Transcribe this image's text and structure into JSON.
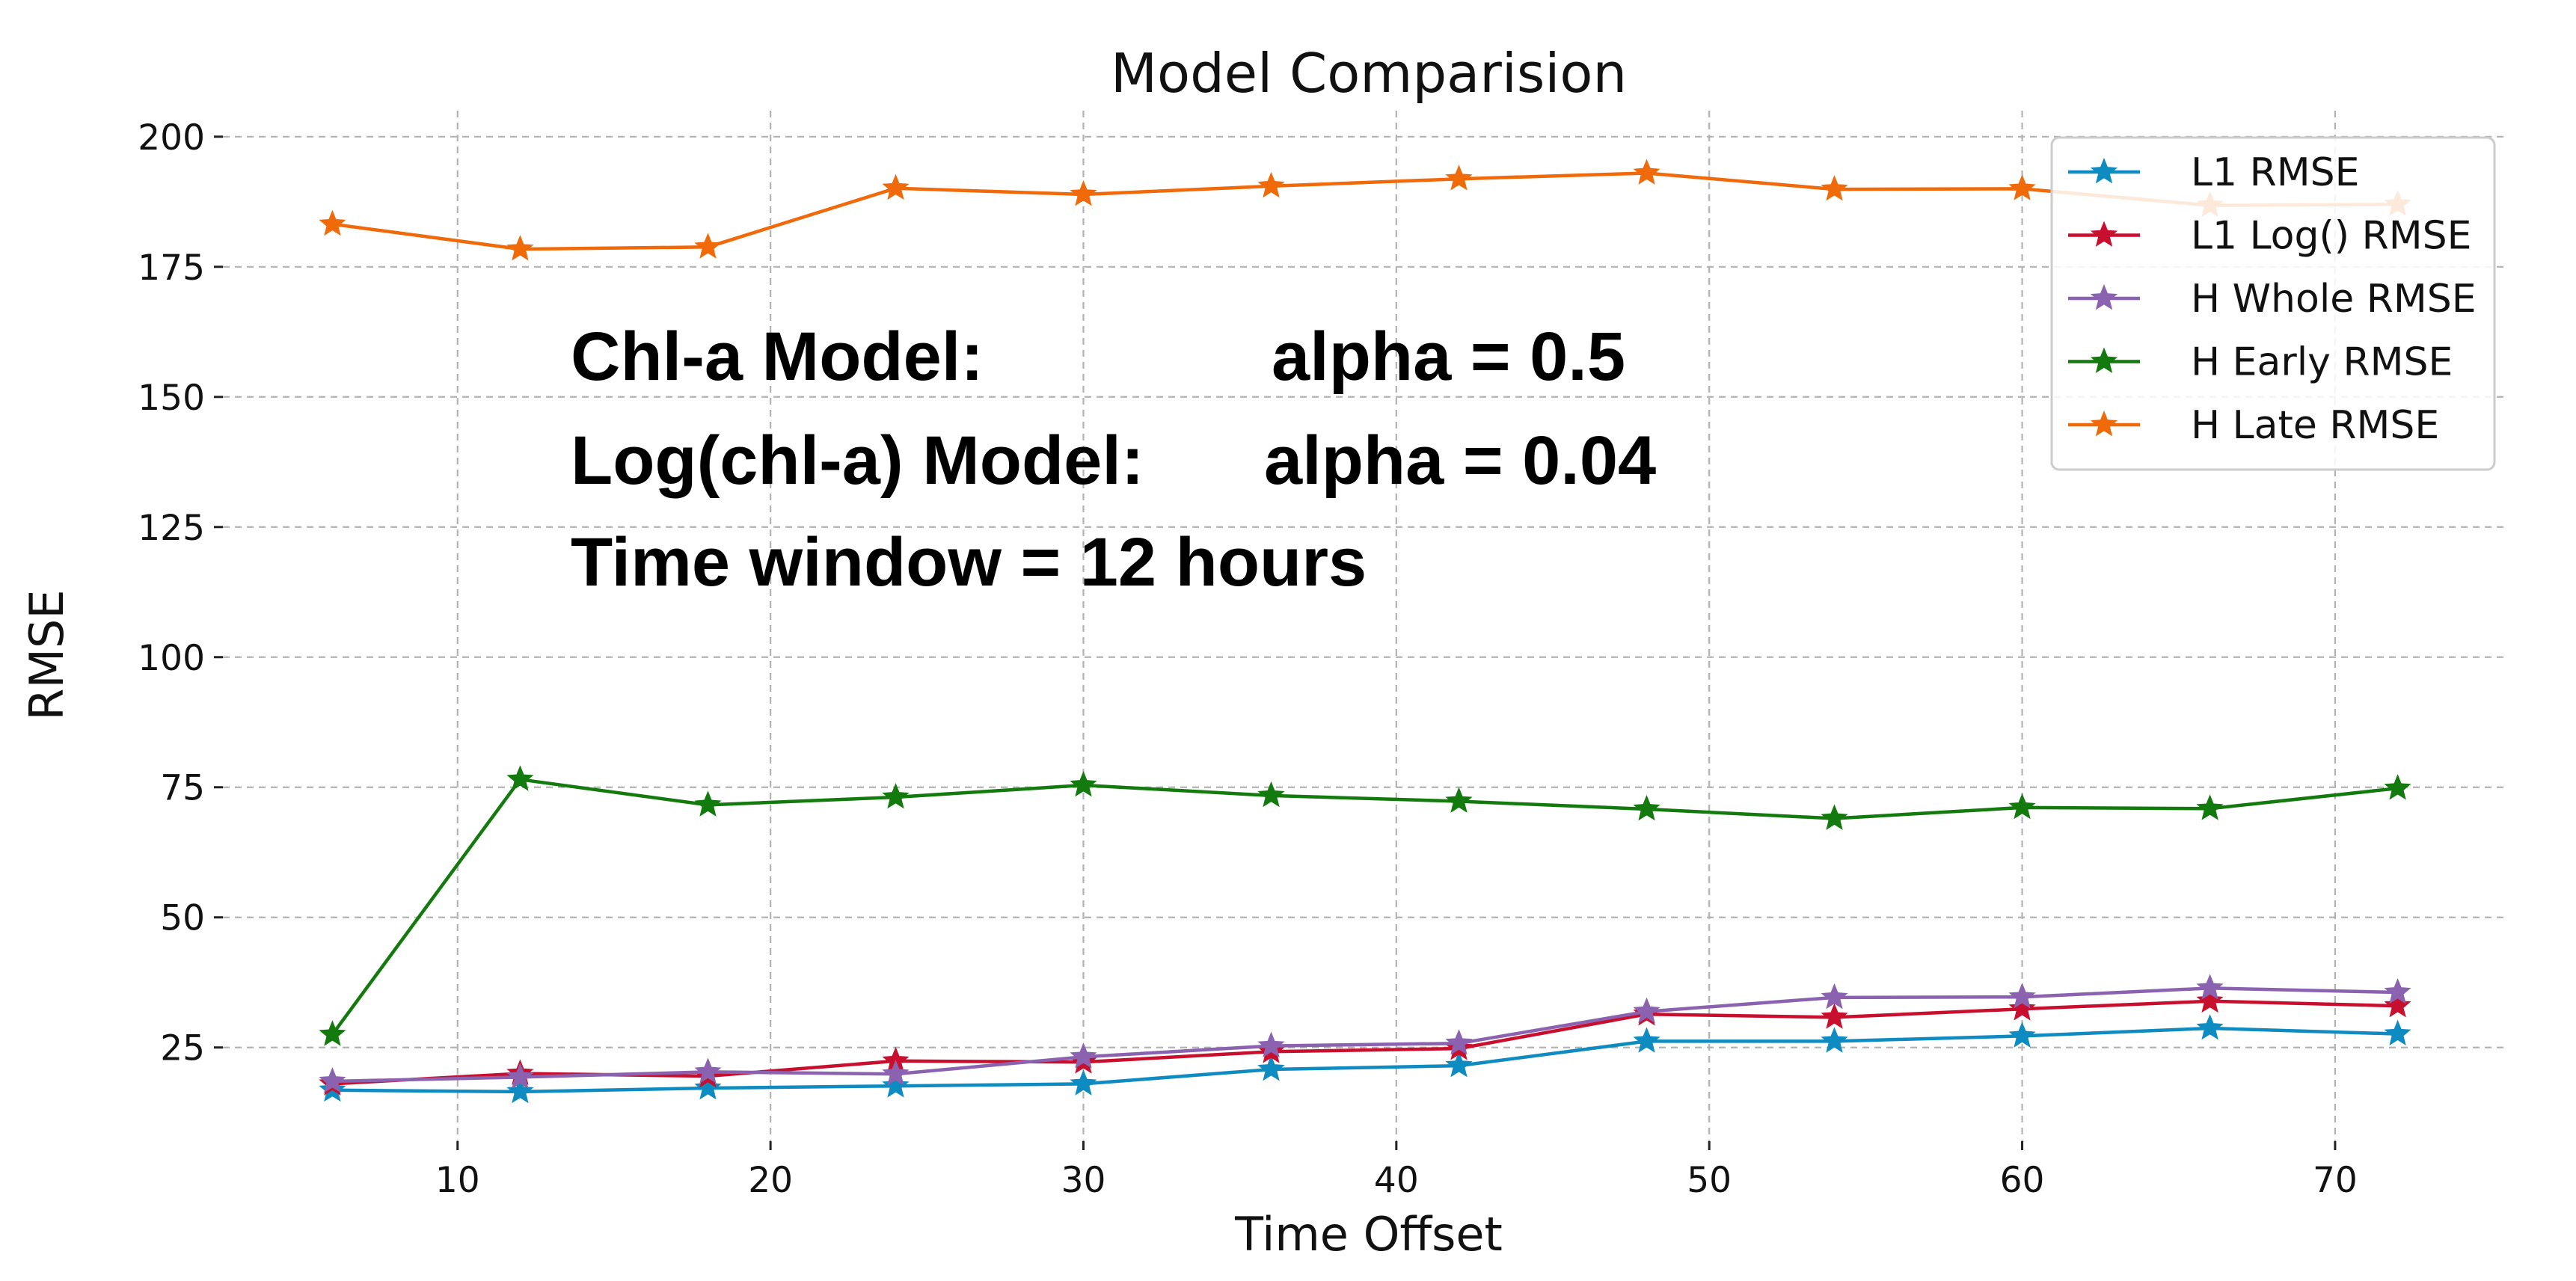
{
  "chart_data": {
    "type": "line",
    "title": "Model Comparision",
    "xlabel": "Time Offset",
    "ylabel": "RMSE",
    "xlim": [
      2.5,
      75.5
    ],
    "ylim": [
      7,
      205
    ],
    "xticks": [
      10,
      20,
      30,
      40,
      50,
      60,
      70
    ],
    "yticks": [
      25,
      50,
      75,
      100,
      125,
      150,
      175,
      200
    ],
    "grid": true,
    "legend_position": "top-right",
    "marker": "star",
    "x": [
      6,
      12,
      18,
      24,
      30,
      36,
      42,
      48,
      54,
      60,
      66,
      72
    ],
    "series": [
      {
        "name": "L1 RMSE",
        "color": "#0e8bc0",
        "values": [
          16.8,
          16.5,
          17.2,
          17.6,
          18.0,
          20.8,
          21.5,
          26.2,
          26.2,
          27.2,
          28.7,
          27.6
        ]
      },
      {
        "name": "L1 Log() RMSE",
        "color": "#c8102e",
        "values": [
          18.0,
          20.0,
          19.5,
          22.4,
          22.2,
          24.2,
          24.8,
          31.4,
          30.8,
          32.4,
          33.9,
          33.0
        ]
      },
      {
        "name": "H Whole RMSE",
        "color": "#8a62b0",
        "values": [
          18.5,
          19.3,
          20.3,
          19.9,
          23.2,
          25.3,
          25.8,
          31.9,
          34.6,
          34.7,
          36.4,
          35.6
        ]
      },
      {
        "name": "H Early RMSE",
        "color": "#137a0d",
        "values": [
          27.5,
          76.5,
          71.6,
          73.1,
          75.4,
          73.4,
          72.3,
          70.8,
          69.0,
          71.1,
          70.9,
          74.8
        ]
      },
      {
        "name": "H Late RMSE",
        "color": "#f16a0a",
        "values": [
          183.2,
          178.4,
          178.8,
          190.1,
          188.9,
          190.5,
          191.9,
          193.0,
          189.9,
          190.0,
          186.8,
          187.0
        ]
      }
    ],
    "annotations": [
      "Chl-a Model:",
      "alpha = 0.5",
      "Log(chl-a) Model:",
      "alpha = 0.04",
      "Time window = 12 hours"
    ]
  }
}
